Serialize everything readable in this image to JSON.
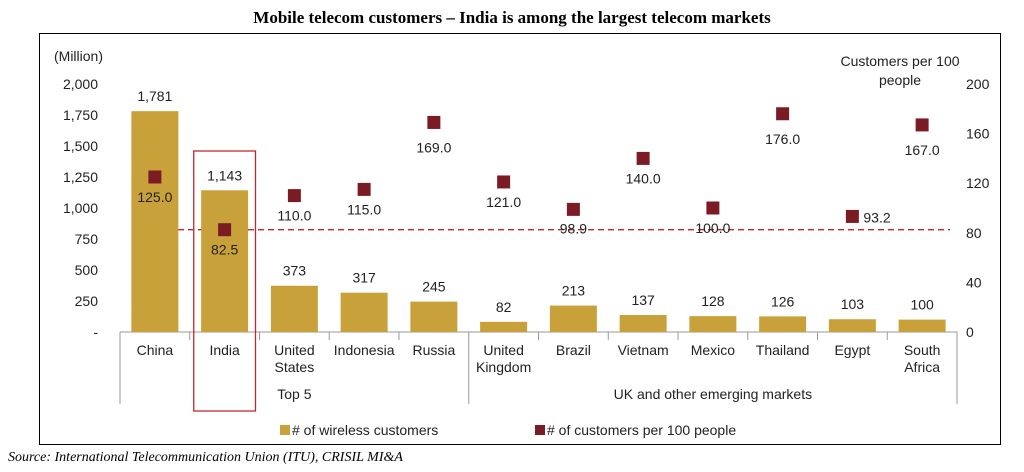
{
  "title": "Mobile telecom customers – India is among the largest telecom markets",
  "source": "Source: International Telecommunication Union (ITU), CRISIL MI&A",
  "chart_data": {
    "type": "bar",
    "categories": [
      [
        "China"
      ],
      [
        "India"
      ],
      [
        "United",
        "States"
      ],
      [
        "Indonesia"
      ],
      [
        "Russia"
      ],
      [
        "United",
        "Kingdom"
      ],
      [
        "Brazil"
      ],
      [
        "Vietnam"
      ],
      [
        "Mexico"
      ],
      [
        "Thailand"
      ],
      [
        "Egypt"
      ],
      [
        "South",
        "Africa"
      ]
    ],
    "series": [
      {
        "name": "# of wireless customers",
        "axis": "left",
        "values": [
          1781,
          1143,
          373,
          317,
          245,
          82,
          213,
          137,
          128,
          126,
          103,
          100
        ],
        "labels": [
          "1,781",
          "1,143",
          "373",
          "317",
          "245",
          "82",
          "213",
          "137",
          "128",
          "126",
          "103",
          "100"
        ],
        "color": "#C9A13A"
      },
      {
        "name": "# of customers per 100 people",
        "axis": "right",
        "values": [
          125.0,
          82.5,
          110.0,
          115.0,
          169.0,
          121.0,
          98.9,
          140.0,
          100.0,
          176.0,
          93.2,
          167.0
        ],
        "labels": [
          "125.0",
          "82.5",
          "110.0",
          "115.0",
          "169.0",
          "121.0",
          "98.9",
          "140.0",
          "100.0",
          "176.0",
          "93.2",
          "167.0"
        ],
        "color": "#7B1C25"
      }
    ],
    "ylabel": "(Million)",
    "ylabel_right": [
      "Customers per 100",
      "people"
    ],
    "ylim": [
      0,
      2000
    ],
    "ylim_right": [
      0,
      200
    ],
    "yticks": [
      {
        "v": 0,
        "label": "-"
      },
      {
        "v": 250,
        "label": "250"
      },
      {
        "v": 500,
        "label": "500"
      },
      {
        "v": 750,
        "label": "750"
      },
      {
        "v": 1000,
        "label": "1,000"
      },
      {
        "v": 1250,
        "label": "1,250"
      },
      {
        "v": 1500,
        "label": "1,500"
      },
      {
        "v": 1750,
        "label": "1,750"
      },
      {
        "v": 2000,
        "label": "2,000"
      }
    ],
    "yticks_right": [
      {
        "v": 0,
        "label": "0"
      },
      {
        "v": 40,
        "label": "40"
      },
      {
        "v": 80,
        "label": "80"
      },
      {
        "v": 120,
        "label": "120"
      },
      {
        "v": 160,
        "label": "160"
      },
      {
        "v": 200,
        "label": "200"
      }
    ],
    "reference_line": {
      "axis": "right",
      "value": 82.5,
      "style": "dashed",
      "color": "#C0282D"
    },
    "groups": [
      {
        "label": "Top 5",
        "from": 0,
        "to": 4
      },
      {
        "label": "UK and other emerging markets",
        "from": 5,
        "to": 11
      }
    ],
    "highlight": {
      "index": 1,
      "color": "#C0282D"
    },
    "legend_position": "bottom",
    "grid": false
  }
}
